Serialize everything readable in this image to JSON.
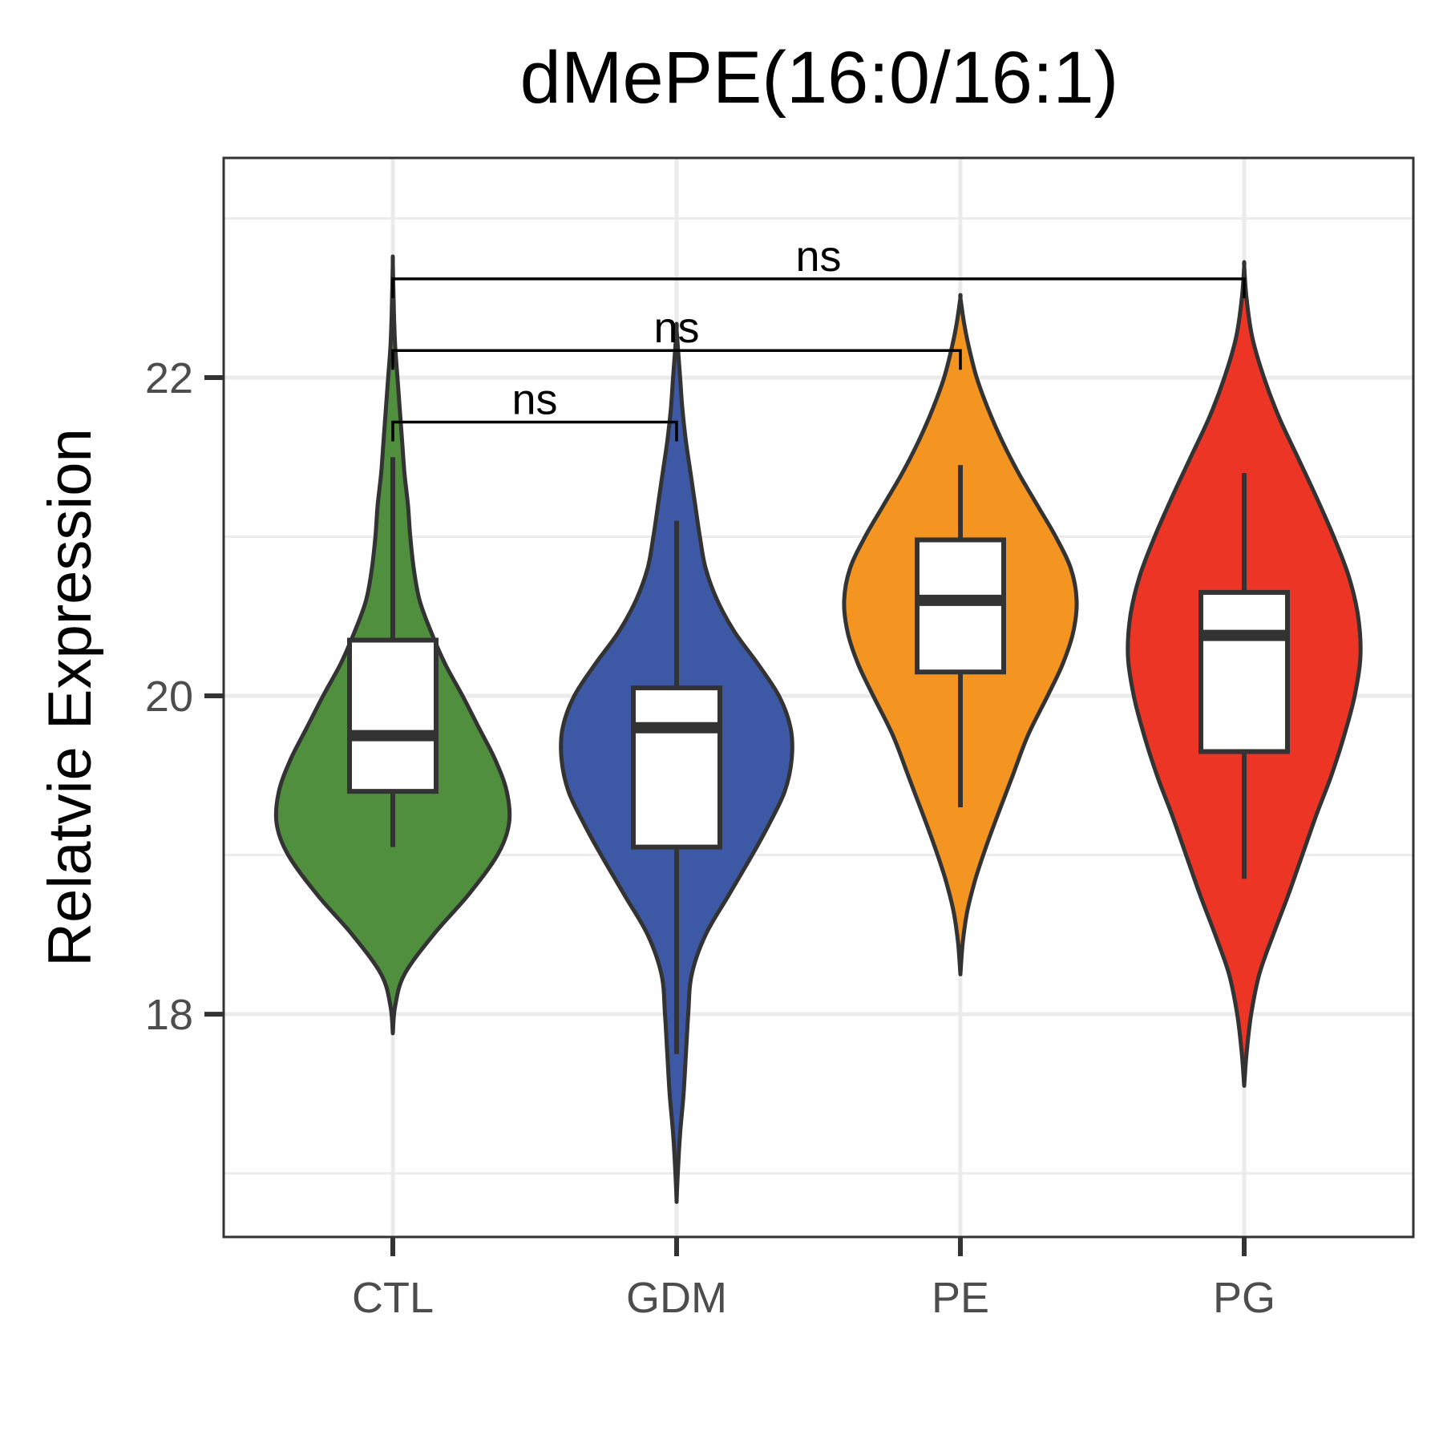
{
  "chart_data": {
    "type": "violin",
    "title": "dMePE(16:0/16:1)",
    "xlabel": "",
    "ylabel": "Relatvie Expression",
    "ylim": [
      16.6,
      23.38
    ],
    "yticks": [
      18,
      20,
      22
    ],
    "grid": true,
    "legend": "none",
    "categories": [
      "CTL",
      "GDM",
      "PE",
      "PG"
    ],
    "colors": [
      "#4f8f3e",
      "#3d59a5",
      "#f39520",
      "#ec3525"
    ],
    "groups": [
      {
        "name": "CTL",
        "violin": {
          "min": 17.88,
          "max": 22.72,
          "profile": [
            [
              17.88,
              0.0
            ],
            [
              18.05,
              0.02
            ],
            [
              18.25,
              0.1
            ],
            [
              18.5,
              0.35
            ],
            [
              18.75,
              0.65
            ],
            [
              19.0,
              0.9
            ],
            [
              19.2,
              1.0
            ],
            [
              19.4,
              0.98
            ],
            [
              19.6,
              0.88
            ],
            [
              19.8,
              0.74
            ],
            [
              20.0,
              0.6
            ],
            [
              20.2,
              0.45
            ],
            [
              20.4,
              0.33
            ],
            [
              20.6,
              0.23
            ],
            [
              20.8,
              0.18
            ],
            [
              21.0,
              0.15
            ],
            [
              21.2,
              0.13
            ],
            [
              21.4,
              0.1
            ],
            [
              21.6,
              0.08
            ],
            [
              21.8,
              0.06
            ],
            [
              22.0,
              0.04
            ],
            [
              22.2,
              0.02
            ],
            [
              22.4,
              0.01
            ],
            [
              22.72,
              0.0
            ]
          ]
        },
        "box": {
          "whisker_low": 19.05,
          "q1": 19.4,
          "median": 19.75,
          "q3": 20.35,
          "whisker_high": 21.5
        }
      },
      {
        "name": "GDM",
        "violin": {
          "min": 16.82,
          "max": 22.3,
          "profile": [
            [
              16.82,
              0.0
            ],
            [
              17.0,
              0.01
            ],
            [
              17.25,
              0.03
            ],
            [
              17.5,
              0.06
            ],
            [
              17.75,
              0.08
            ],
            [
              18.0,
              0.1
            ],
            [
              18.25,
              0.13
            ],
            [
              18.5,
              0.25
            ],
            [
              18.75,
              0.45
            ],
            [
              19.0,
              0.65
            ],
            [
              19.2,
              0.8
            ],
            [
              19.4,
              0.93
            ],
            [
              19.6,
              0.99
            ],
            [
              19.8,
              0.98
            ],
            [
              20.0,
              0.88
            ],
            [
              20.2,
              0.7
            ],
            [
              20.4,
              0.5
            ],
            [
              20.6,
              0.35
            ],
            [
              20.8,
              0.25
            ],
            [
              21.0,
              0.2
            ],
            [
              21.2,
              0.16
            ],
            [
              21.4,
              0.12
            ],
            [
              21.6,
              0.08
            ],
            [
              21.8,
              0.05
            ],
            [
              22.0,
              0.03
            ],
            [
              22.3,
              0.0
            ]
          ]
        },
        "box": {
          "whisker_low": 17.75,
          "q1": 19.05,
          "median": 19.8,
          "q3": 20.05,
          "whisker_high": 21.1
        }
      },
      {
        "name": "PE",
        "violin": {
          "min": 18.25,
          "max": 22.5,
          "profile": [
            [
              18.25,
              0.0
            ],
            [
              18.45,
              0.02
            ],
            [
              18.65,
              0.06
            ],
            [
              18.85,
              0.13
            ],
            [
              19.05,
              0.22
            ],
            [
              19.25,
              0.32
            ],
            [
              19.5,
              0.45
            ],
            [
              19.75,
              0.58
            ],
            [
              20.0,
              0.75
            ],
            [
              20.2,
              0.88
            ],
            [
              20.4,
              0.97
            ],
            [
              20.6,
              1.0
            ],
            [
              20.8,
              0.95
            ],
            [
              21.0,
              0.82
            ],
            [
              21.2,
              0.66
            ],
            [
              21.4,
              0.5
            ],
            [
              21.6,
              0.36
            ],
            [
              21.8,
              0.24
            ],
            [
              22.0,
              0.14
            ],
            [
              22.2,
              0.07
            ],
            [
              22.35,
              0.03
            ],
            [
              22.5,
              0.0
            ]
          ]
        },
        "box": {
          "whisker_low": 19.3,
          "q1": 20.15,
          "median": 20.6,
          "q3": 20.98,
          "whisker_high": 21.45
        }
      },
      {
        "name": "PG",
        "violin": {
          "min": 17.55,
          "max": 22.7,
          "profile": [
            [
              17.55,
              0.0
            ],
            [
              17.75,
              0.02
            ],
            [
              18.0,
              0.06
            ],
            [
              18.25,
              0.13
            ],
            [
              18.5,
              0.25
            ],
            [
              18.75,
              0.38
            ],
            [
              19.0,
              0.5
            ],
            [
              19.25,
              0.62
            ],
            [
              19.5,
              0.75
            ],
            [
              19.75,
              0.86
            ],
            [
              20.0,
              0.95
            ],
            [
              20.25,
              1.0
            ],
            [
              20.5,
              0.98
            ],
            [
              20.75,
              0.9
            ],
            [
              21.0,
              0.77
            ],
            [
              21.25,
              0.62
            ],
            [
              21.5,
              0.46
            ],
            [
              21.75,
              0.3
            ],
            [
              22.0,
              0.17
            ],
            [
              22.25,
              0.07
            ],
            [
              22.5,
              0.02
            ],
            [
              22.7,
              0.0
            ]
          ]
        },
        "box": {
          "whisker_low": 18.85,
          "q1": 19.65,
          "median": 20.38,
          "q3": 20.65,
          "whisker_high": 21.4
        }
      }
    ],
    "comparisons": [
      {
        "from": "CTL",
        "to": "GDM",
        "y": 21.72,
        "label": "ns"
      },
      {
        "from": "CTL",
        "to": "PE",
        "y": 22.17,
        "label": "ns"
      },
      {
        "from": "CTL",
        "to": "PG",
        "y": 22.62,
        "label": "ns"
      }
    ]
  }
}
